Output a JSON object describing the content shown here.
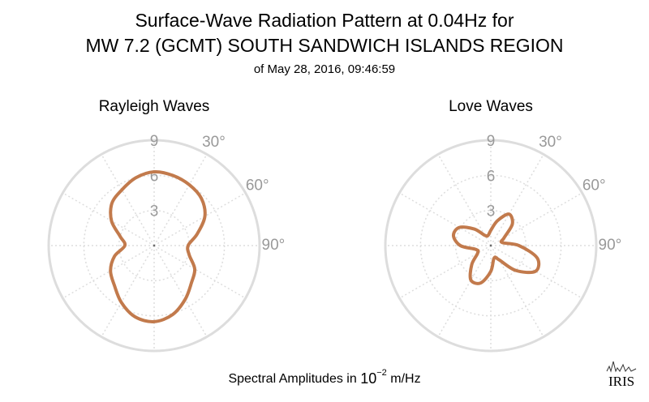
{
  "title": [
    "Surface-Wave Radiation Pattern at 0.04Hz for",
    "MW 7.2 (GCMT) SOUTH SANDWICH ISLANDS REGION"
  ],
  "subtitle": "of May 28, 2016, 09:46:59",
  "axis_label": {
    "text": "Spectral Amplitudes in",
    "base": "10",
    "exponent": "−2",
    "unit": "m/Hz"
  },
  "logo": "IRIS",
  "chart_data": [
    {
      "type": "polar",
      "title": "Rayleigh Waves",
      "color": "#c27a4c",
      "theta": [
        0,
        15,
        30,
        45,
        60,
        75,
        90,
        105,
        120,
        135,
        150,
        165,
        180,
        195,
        210,
        225,
        240,
        255,
        270,
        285,
        300,
        315,
        330,
        345
      ],
      "values": [
        6.3,
        6.2,
        6.0,
        5.7,
        5.0,
        3.8,
        2.9,
        3.1,
        4.0,
        4.5,
        5.3,
        6.1,
        6.5,
        6.3,
        5.6,
        4.8,
        4.3,
        3.5,
        2.5,
        3.0,
        4.2,
        5.1,
        5.5,
        6.0
      ],
      "rlim": [
        0,
        9
      ],
      "rticks": [
        3,
        6,
        9
      ],
      "thetagrid": [
        0,
        30,
        60,
        90,
        120,
        150,
        180,
        210,
        240,
        270,
        300,
        330
      ],
      "thetaticks": [
        {
          "value": 30,
          "label": "30°"
        },
        {
          "value": 60,
          "label": "60°"
        },
        {
          "value": 90,
          "label": "90°"
        }
      ]
    },
    {
      "type": "polar",
      "title": "Love Waves",
      "color": "#c27a4c",
      "theta": [
        0,
        15,
        30,
        45,
        60,
        75,
        90,
        105,
        120,
        135,
        150,
        165,
        180,
        195,
        210,
        225,
        240,
        255,
        270,
        285,
        300,
        315,
        330,
        345
      ],
      "values": [
        1.3,
        2.2,
        3.1,
        2.6,
        1.3,
        1.0,
        2.4,
        4.1,
        4.4,
        3.0,
        1.4,
        1.1,
        2.2,
        3.3,
        3.4,
        2.3,
        1.3,
        1.3,
        2.6,
        3.3,
        3.1,
        2.0,
        1.0,
        0.9
      ],
      "rlim": [
        0,
        9
      ],
      "rticks": [
        3,
        6,
        9
      ],
      "thetagrid": [
        0,
        30,
        60,
        90,
        120,
        150,
        180,
        210,
        240,
        270,
        300,
        330
      ],
      "thetaticks": [
        {
          "value": 30,
          "label": "30°"
        },
        {
          "value": 60,
          "label": "60°"
        },
        {
          "value": 90,
          "label": "90°"
        }
      ]
    }
  ]
}
